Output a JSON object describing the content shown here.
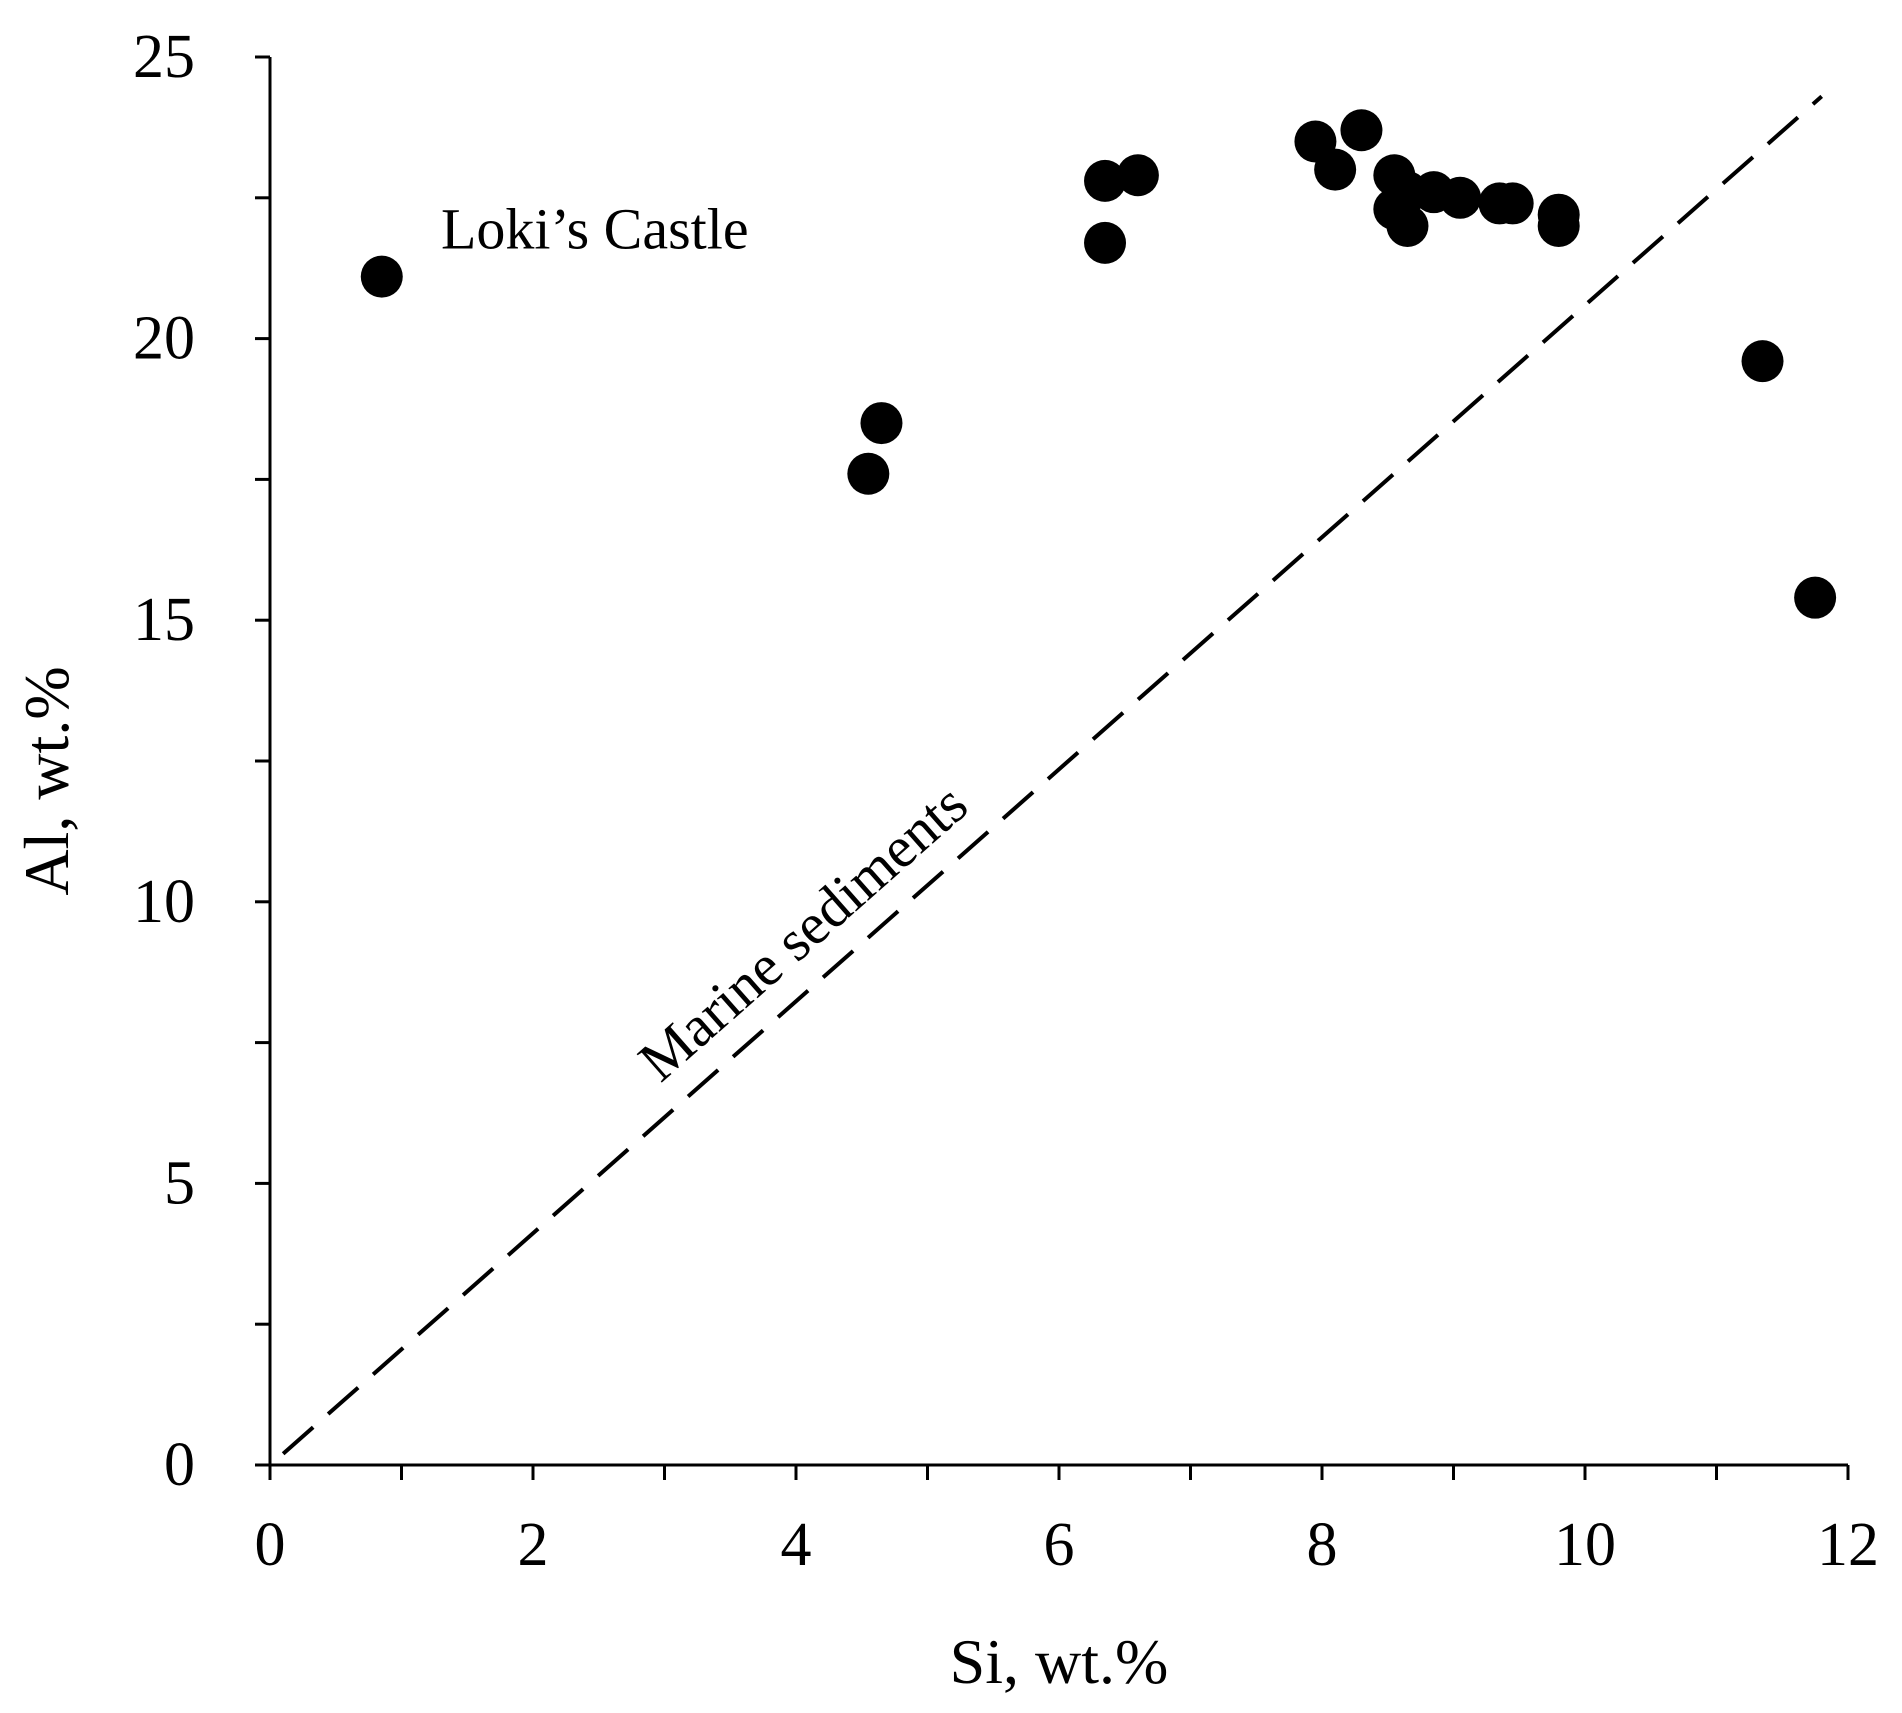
{
  "chart_data": {
    "type": "scatter",
    "xlabel": "Si, wt.%",
    "ylabel": "Al, wt.%",
    "xlim": [
      0,
      12
    ],
    "ylim": [
      0,
      25
    ],
    "x_ticks": [
      0,
      2,
      4,
      6,
      8,
      10,
      12
    ],
    "y_ticks": [
      0,
      5,
      10,
      15,
      20,
      25
    ],
    "x_minor_step": 1,
    "y_minor_step": 2.5,
    "grid": false,
    "legend": "none",
    "marker_color": "#000000",
    "series": [
      {
        "points": [
          {
            "x": 0.85,
            "y": 21.1
          },
          {
            "x": 4.55,
            "y": 17.6
          },
          {
            "x": 4.65,
            "y": 18.5
          },
          {
            "x": 6.35,
            "y": 21.7
          },
          {
            "x": 6.35,
            "y": 22.8
          },
          {
            "x": 6.6,
            "y": 22.9
          },
          {
            "x": 7.95,
            "y": 23.5
          },
          {
            "x": 8.1,
            "y": 23.0
          },
          {
            "x": 8.3,
            "y": 23.7
          },
          {
            "x": 8.55,
            "y": 22.9
          },
          {
            "x": 8.55,
            "y": 22.3
          },
          {
            "x": 8.65,
            "y": 22.6
          },
          {
            "x": 8.65,
            "y": 22.0
          },
          {
            "x": 8.85,
            "y": 22.6
          },
          {
            "x": 9.05,
            "y": 22.5
          },
          {
            "x": 9.35,
            "y": 22.4
          },
          {
            "x": 9.45,
            "y": 22.4
          },
          {
            "x": 9.8,
            "y": 22.2
          },
          {
            "x": 9.8,
            "y": 22.0
          },
          {
            "x": 11.35,
            "y": 19.6
          },
          {
            "x": 11.75,
            "y": 15.4
          }
        ]
      }
    ],
    "reference_line": {
      "label": "Marine sediments",
      "style": "dashed",
      "from": {
        "x": 0.1,
        "y": 0.2
      },
      "to": {
        "x": 11.8,
        "y": 24.3
      }
    },
    "annotations": [
      {
        "text": "Loki’s Castle",
        "x": 1.3,
        "y": 21.6
      }
    ]
  }
}
